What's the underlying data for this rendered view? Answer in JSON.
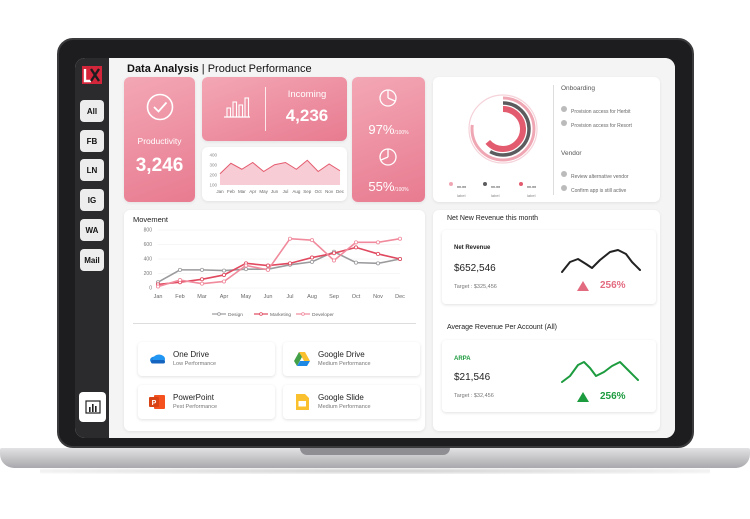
{
  "page": {
    "title_bold": "Data Analysis",
    "title_rest": " | Product Performance"
  },
  "sidebar": {
    "logo": "LX",
    "items": [
      {
        "label": "All"
      },
      {
        "label": "FB"
      },
      {
        "label": "LN"
      },
      {
        "label": "IG"
      },
      {
        "label": "WA"
      },
      {
        "label": "Mail"
      }
    ],
    "bottom_icon": "bar-chart-icon"
  },
  "productivity": {
    "label": "Productivity",
    "value": "3,246"
  },
  "incoming": {
    "label": "Incoming",
    "value": "4,236"
  },
  "percent_cards": [
    {
      "value": "97%",
      "suffix": "/100%"
    },
    {
      "value": "55%",
      "suffix": "/100%"
    }
  ],
  "mini_chart": {
    "months": [
      "Jan",
      "Feb",
      "Mar",
      "Apr",
      "May",
      "Jun",
      "Jul",
      "Aug",
      "Sep",
      "Oct",
      "Nov",
      "Dec"
    ],
    "y_ticks": [
      "400",
      "300",
      "200",
      "100"
    ],
    "values": [
      150,
      290,
      210,
      300,
      180,
      270,
      300,
      210,
      330,
      180,
      280,
      190
    ]
  },
  "donut": {
    "legend": [
      {
        "label": "xx.xx",
        "sub": "label",
        "color": "#f0a7b4"
      },
      {
        "label": "xx.xx",
        "sub": "label",
        "color": "#5c5c5e"
      },
      {
        "label": "xx.xx",
        "sub": "label",
        "color": "#e35b6e"
      }
    ]
  },
  "onboarding": {
    "title": "Onboarding",
    "items": [
      "Provision access for Herbit",
      "Provision access for Resort"
    ]
  },
  "vendor": {
    "title": "Vendor",
    "items": [
      "Review alternative vendor",
      "Confirm app is still active"
    ]
  },
  "movement": {
    "title": "Movement",
    "chart_data": {
      "type": "line",
      "x": [
        "Jan",
        "Feb",
        "Mar",
        "Apr",
        "May",
        "Jun",
        "Jul",
        "Aug",
        "Sep",
        "Oct",
        "Nov",
        "Dec"
      ],
      "y_ticks": [
        "800",
        "600",
        "400",
        "200",
        "0"
      ],
      "ylim": [
        0,
        800
      ],
      "series": [
        {
          "name": "Design",
          "color": "#9b9b9e",
          "values": [
            80,
            250,
            250,
            240,
            260,
            260,
            320,
            360,
            500,
            350,
            340,
            400
          ]
        },
        {
          "name": "Marketing",
          "color": "#e0495f",
          "values": [
            50,
            80,
            120,
            180,
            340,
            310,
            340,
            420,
            480,
            560,
            470,
            400
          ]
        },
        {
          "name": "Developer",
          "color": "#f08a9c",
          "values": [
            20,
            110,
            60,
            90,
            310,
            250,
            680,
            660,
            380,
            630,
            630,
            680
          ]
        }
      ]
    }
  },
  "tools": [
    {
      "name": "One Drive",
      "perf": "Low Performance",
      "icon": "onedrive-icon"
    },
    {
      "name": "Google Drive",
      "perf": "Medium Performance",
      "icon": "google-drive-icon"
    },
    {
      "name": "PowerPoint",
      "perf": "Pest Performance",
      "icon": "powerpoint-icon"
    },
    {
      "name": "Google Slide",
      "perf": "Medium Performance",
      "icon": "google-slide-icon"
    }
  ],
  "net_revenue": {
    "section_title": "Net New Revenue this month",
    "label": "Net Revenue",
    "value": "$652,546",
    "target": "Target  : $325,456",
    "change": "256%",
    "color": "#e36b80",
    "line_color": "#222222"
  },
  "arpa": {
    "section_title": "Average Revenue Per Account (All)",
    "label": "ARPA",
    "value": "$21,546",
    "target": "Target  : $32,456",
    "change": "256%",
    "color": "#1d9b3f",
    "line_color": "#1d9b3f"
  }
}
